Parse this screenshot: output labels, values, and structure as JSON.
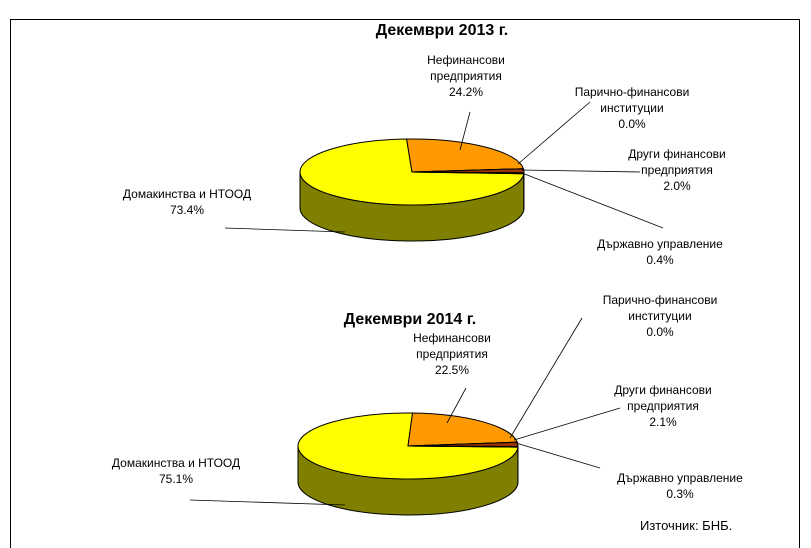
{
  "chart_data": [
    {
      "type": "pie3d",
      "title": "Декември 2013 г.",
      "categories": [
        "Домакинства и НТООД",
        "Нефинансови предприятия",
        "Парично-финансови институции",
        "Други финансови предприятия",
        "Държавно управление"
      ],
      "values": [
        73.4,
        24.2,
        0.0,
        2.0,
        0.4
      ],
      "value_labels": [
        "73.4%",
        "24.2%",
        "0.0%",
        "2.0%",
        "0.4%"
      ],
      "colors": [
        "#ffff00",
        "#ff9900",
        "#ffcc99",
        "#993300",
        "#cc3300"
      ]
    },
    {
      "type": "pie3d",
      "title": "Декември 2014 г.",
      "categories": [
        "Домакинства и НТООД",
        "Нефинансови предприятия",
        "Парично-финансови институции",
        "Други финансови предприятия",
        "Държавно управление"
      ],
      "values": [
        75.1,
        22.5,
        0.0,
        2.1,
        0.3
      ],
      "value_labels": [
        "75.1%",
        "22.5%",
        "0.0%",
        "2.1%",
        "0.3%"
      ],
      "colors": [
        "#ffff00",
        "#ff9900",
        "#ffcc99",
        "#993300",
        "#cc3300"
      ]
    }
  ],
  "source": "Източник: БНБ."
}
